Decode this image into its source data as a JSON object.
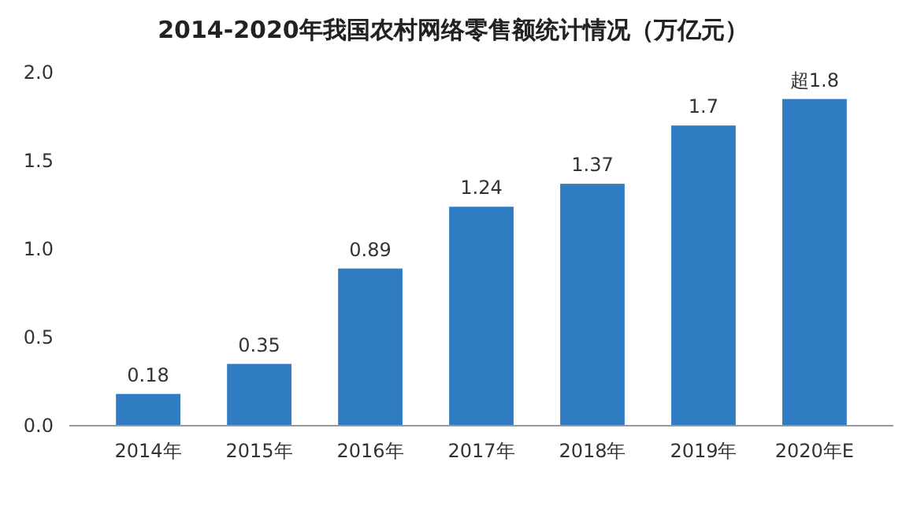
{
  "chart_data": {
    "type": "bar",
    "title": "2014-2020年我国农村网络零售额统计情况（万亿元）",
    "categories": [
      "2014年",
      "2015年",
      "2016年",
      "2017年",
      "2018年",
      "2019年",
      "2020年E"
    ],
    "values": [
      0.18,
      0.35,
      0.89,
      1.24,
      1.37,
      1.7,
      1.85
    ],
    "value_labels": [
      "0.18",
      "0.35",
      "0.89",
      "1.24",
      "1.37",
      "1.7",
      "超1.8"
    ],
    "color": "#2f7cc3",
    "ylim": [
      0,
      2
    ],
    "yticks": [
      {
        "value": 0,
        "label": "0.0"
      },
      {
        "value": 0.5,
        "label": "0.5"
      },
      {
        "value": 1,
        "label": "1.0"
      },
      {
        "value": 1.5,
        "label": "1.5"
      },
      {
        "value": 2,
        "label": "2.0"
      }
    ],
    "grid": false
  }
}
